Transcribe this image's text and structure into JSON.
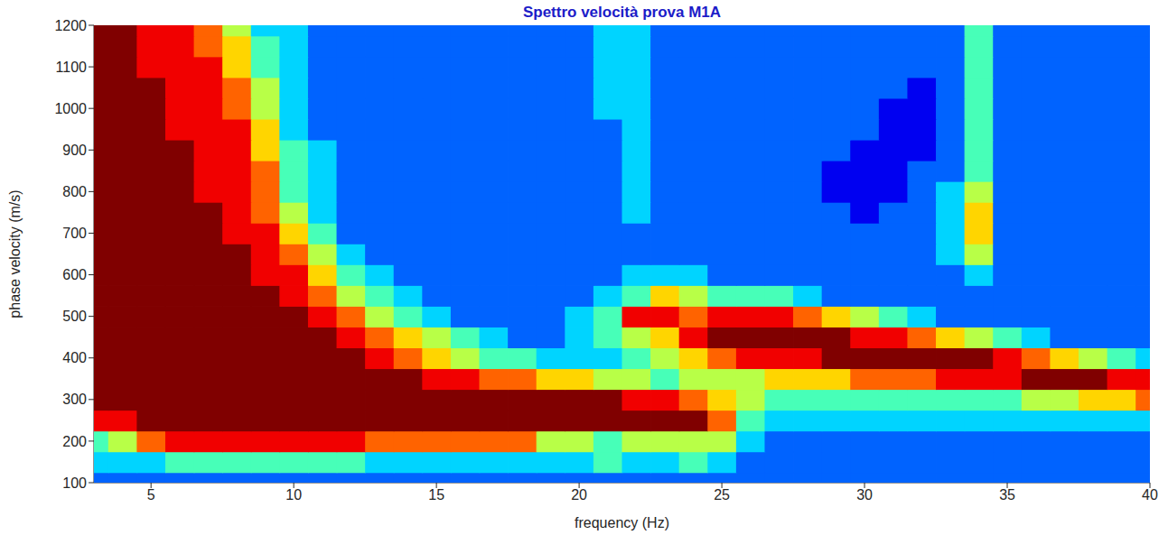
{
  "chart_data": {
    "type": "heatmap",
    "title": "Spettro velocità prova M1A",
    "x_label": "frequency (Hz)",
    "y_label": "phase velocity (m/s)",
    "xlim": [
      3,
      40
    ],
    "xticks": [
      5,
      10,
      15,
      20,
      25,
      30,
      35,
      40
    ],
    "ylim": [
      100,
      1200
    ],
    "yticks": [
      100,
      200,
      300,
      400,
      500,
      600,
      700,
      800,
      900,
      1000,
      1100,
      1200
    ],
    "z_range": [
      0,
      9
    ],
    "x": [
      3,
      4,
      5,
      6,
      7,
      8,
      9,
      10,
      11,
      12,
      13,
      14,
      15,
      16,
      17,
      18,
      19,
      20,
      21,
      22,
      23,
      24,
      25,
      26,
      27,
      28,
      29,
      30,
      31,
      32,
      33,
      34,
      35,
      36,
      37,
      38,
      39,
      40
    ],
    "y": [
      100,
      150,
      200,
      250,
      300,
      350,
      400,
      450,
      500,
      550,
      600,
      650,
      700,
      750,
      800,
      850,
      900,
      950,
      1000,
      1050,
      1100,
      1150,
      1200
    ],
    "cells": [
      [
        2,
        2,
        2,
        2,
        2,
        2,
        2,
        2,
        2,
        2,
        2,
        2,
        2,
        2,
        2,
        2,
        2,
        2,
        2,
        2,
        2,
        2,
        2,
        2,
        2,
        2,
        2,
        2,
        2,
        2,
        2,
        2,
        2,
        2,
        2,
        2,
        2,
        2
      ],
      [
        3,
        3,
        3,
        4,
        4,
        4,
        4,
        4,
        4,
        4,
        3,
        3,
        3,
        3,
        3,
        3,
        3,
        3,
        4,
        3,
        3,
        4,
        3,
        2,
        2,
        2,
        2,
        2,
        2,
        2,
        2,
        2,
        2,
        2,
        2,
        2,
        2,
        2
      ],
      [
        4,
        5,
        7,
        8,
        8,
        8,
        8,
        8,
        8,
        8,
        7,
        7,
        7,
        7,
        7,
        7,
        5,
        5,
        4,
        5,
        5,
        5,
        5,
        3,
        2,
        2,
        2,
        2,
        2,
        2,
        2,
        2,
        2,
        2,
        2,
        2,
        2,
        2
      ],
      [
        8,
        8,
        9,
        9,
        9,
        9,
        9,
        9,
        9,
        9,
        9,
        9,
        9,
        9,
        9,
        9,
        9,
        9,
        9,
        9,
        9,
        9,
        7,
        4,
        3,
        3,
        3,
        3,
        3,
        3,
        3,
        3,
        3,
        3,
        3,
        3,
        3,
        3
      ],
      [
        9,
        9,
        9,
        9,
        9,
        9,
        9,
        9,
        9,
        9,
        9,
        9,
        9,
        9,
        9,
        9,
        9,
        9,
        9,
        8,
        8,
        7,
        6,
        5,
        4,
        4,
        4,
        4,
        4,
        4,
        4,
        4,
        4,
        5,
        5,
        6,
        6,
        7
      ],
      [
        9,
        9,
        9,
        9,
        9,
        9,
        9,
        9,
        9,
        9,
        9,
        9,
        8,
        8,
        7,
        7,
        6,
        6,
        5,
        5,
        4,
        5,
        5,
        5,
        6,
        6,
        6,
        7,
        7,
        7,
        8,
        8,
        8,
        9,
        9,
        9,
        8,
        8
      ],
      [
        9,
        9,
        9,
        9,
        9,
        9,
        9,
        9,
        9,
        9,
        8,
        7,
        6,
        5,
        4,
        4,
        3,
        3,
        3,
        4,
        5,
        6,
        7,
        8,
        8,
        8,
        9,
        9,
        9,
        9,
        9,
        9,
        8,
        7,
        6,
        5,
        4,
        3
      ],
      [
        9,
        9,
        9,
        9,
        9,
        9,
        9,
        9,
        9,
        8,
        7,
        6,
        5,
        4,
        3,
        2,
        2,
        3,
        4,
        5,
        6,
        8,
        9,
        9,
        9,
        9,
        9,
        8,
        8,
        7,
        6,
        5,
        4,
        3,
        2,
        2,
        2,
        2
      ],
      [
        9,
        9,
        9,
        9,
        9,
        9,
        9,
        9,
        8,
        7,
        5,
        4,
        3,
        2,
        2,
        2,
        2,
        3,
        4,
        8,
        8,
        7,
        8,
        8,
        8,
        7,
        6,
        5,
        4,
        3,
        2,
        2,
        2,
        2,
        2,
        2,
        2,
        2
      ],
      [
        9,
        9,
        9,
        9,
        9,
        9,
        9,
        8,
        7,
        5,
        4,
        3,
        2,
        2,
        2,
        2,
        2,
        2,
        3,
        4,
        6,
        5,
        4,
        4,
        4,
        3,
        2,
        2,
        2,
        2,
        2,
        2,
        2,
        2,
        2,
        2,
        2,
        2
      ],
      [
        9,
        9,
        9,
        9,
        9,
        9,
        8,
        8,
        6,
        4,
        3,
        2,
        2,
        2,
        2,
        2,
        2,
        2,
        2,
        3,
        3,
        3,
        2,
        2,
        2,
        2,
        2,
        2,
        2,
        2,
        2,
        3,
        2,
        2,
        2,
        2,
        2,
        2
      ],
      [
        9,
        9,
        9,
        9,
        9,
        9,
        8,
        7,
        5,
        3,
        2,
        2,
        2,
        2,
        2,
        2,
        2,
        2,
        2,
        2,
        2,
        2,
        2,
        2,
        2,
        2,
        2,
        2,
        2,
        2,
        3,
        5,
        2,
        2,
        2,
        2,
        2,
        2
      ],
      [
        9,
        9,
        9,
        9,
        9,
        8,
        8,
        6,
        4,
        2,
        2,
        2,
        2,
        2,
        2,
        2,
        2,
        2,
        2,
        2,
        2,
        2,
        2,
        2,
        2,
        2,
        2,
        2,
        2,
        2,
        3,
        6,
        2,
        2,
        2,
        2,
        2,
        2
      ],
      [
        9,
        9,
        9,
        9,
        9,
        8,
        7,
        5,
        3,
        2,
        2,
        2,
        2,
        2,
        2,
        2,
        2,
        2,
        2,
        3,
        2,
        2,
        2,
        2,
        2,
        2,
        2,
        1,
        2,
        2,
        3,
        6,
        2,
        2,
        2,
        2,
        2,
        2
      ],
      [
        9,
        9,
        9,
        9,
        8,
        8,
        7,
        4,
        3,
        2,
        2,
        2,
        2,
        2,
        2,
        2,
        2,
        2,
        2,
        3,
        2,
        2,
        2,
        2,
        2,
        2,
        1,
        1,
        1,
        2,
        3,
        5,
        2,
        2,
        2,
        2,
        2,
        2
      ],
      [
        9,
        9,
        9,
        9,
        8,
        8,
        7,
        4,
        3,
        2,
        2,
        2,
        2,
        2,
        2,
        2,
        2,
        2,
        2,
        3,
        2,
        2,
        2,
        2,
        2,
        2,
        1,
        1,
        1,
        2,
        2,
        4,
        2,
        2,
        2,
        2,
        2,
        2
      ],
      [
        9,
        9,
        9,
        9,
        8,
        8,
        6,
        4,
        3,
        2,
        2,
        2,
        2,
        2,
        2,
        2,
        2,
        2,
        2,
        3,
        2,
        2,
        2,
        2,
        2,
        2,
        2,
        1,
        1,
        1,
        2,
        4,
        2,
        2,
        2,
        2,
        2,
        2
      ],
      [
        9,
        9,
        9,
        8,
        8,
        8,
        6,
        3,
        2,
        2,
        2,
        2,
        2,
        2,
        2,
        2,
        2,
        2,
        2,
        3,
        2,
        2,
        2,
        2,
        2,
        2,
        2,
        2,
        1,
        1,
        2,
        4,
        2,
        2,
        2,
        2,
        2,
        2
      ],
      [
        9,
        9,
        9,
        8,
        8,
        7,
        5,
        3,
        2,
        2,
        2,
        2,
        2,
        2,
        2,
        2,
        2,
        2,
        3,
        3,
        2,
        2,
        2,
        2,
        2,
        2,
        2,
        2,
        1,
        1,
        2,
        4,
        2,
        2,
        2,
        2,
        2,
        2
      ],
      [
        9,
        9,
        9,
        8,
        8,
        7,
        5,
        3,
        2,
        2,
        2,
        2,
        2,
        2,
        2,
        2,
        2,
        2,
        3,
        3,
        2,
        2,
        2,
        2,
        2,
        2,
        2,
        2,
        2,
        1,
        2,
        4,
        2,
        2,
        2,
        2,
        2,
        2
      ],
      [
        9,
        9,
        8,
        8,
        8,
        6,
        4,
        3,
        2,
        2,
        2,
        2,
        2,
        2,
        2,
        2,
        2,
        2,
        3,
        3,
        2,
        2,
        2,
        2,
        2,
        2,
        2,
        2,
        2,
        2,
        2,
        4,
        2,
        2,
        2,
        2,
        2,
        2
      ],
      [
        9,
        9,
        8,
        8,
        7,
        6,
        4,
        3,
        2,
        2,
        2,
        2,
        2,
        2,
        2,
        2,
        2,
        2,
        3,
        3,
        2,
        2,
        2,
        2,
        2,
        2,
        2,
        2,
        2,
        2,
        2,
        4,
        2,
        2,
        2,
        2,
        2,
        2
      ],
      [
        9,
        9,
        8,
        8,
        7,
        5,
        3,
        3,
        2,
        2,
        2,
        2,
        2,
        2,
        2,
        2,
        2,
        2,
        3,
        3,
        2,
        2,
        2,
        2,
        2,
        2,
        2,
        2,
        2,
        2,
        2,
        4,
        2,
        2,
        2,
        2,
        2,
        2
      ]
    ]
  }
}
